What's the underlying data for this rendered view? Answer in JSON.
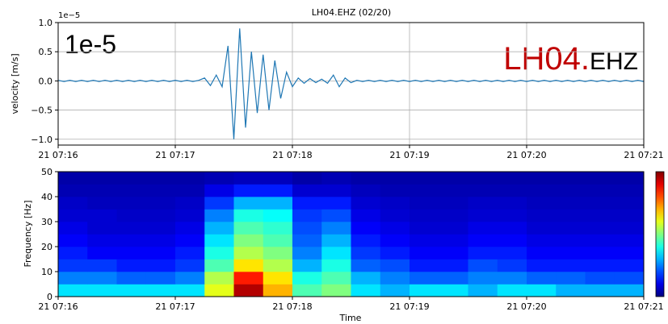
{
  "chart_data": [
    {
      "type": "line",
      "title": "LH04.EHZ (02/20)",
      "y_label": "velocity [m/s]",
      "offset_label": "1e−5",
      "annotations": {
        "scale": "1e-5",
        "station": "LH04.",
        "channel": "EHZ"
      },
      "color": "#1f77b4",
      "annotation_color": "#c00000",
      "grid": true,
      "xlim": [
        436,
        441
      ],
      "xticks": [
        {
          "value": 436,
          "label": "21 07:16"
        },
        {
          "value": 437,
          "label": "21 07:17"
        },
        {
          "value": 438,
          "label": "21 07:18"
        },
        {
          "value": 439,
          "label": "21 07:19"
        },
        {
          "value": 440,
          "label": "21 07:20"
        },
        {
          "value": 441,
          "label": "21 07:21"
        }
      ],
      "ylim": [
        -1.1,
        1.0
      ],
      "yticks": [
        {
          "value": -1,
          "label": "−1.0"
        },
        {
          "value": -0.5,
          "label": "−0.5"
        },
        {
          "value": 0,
          "label": "0.0"
        },
        {
          "value": 0.5,
          "label": "0.5"
        },
        {
          "value": 1,
          "label": "1.0"
        }
      ],
      "x": [
        436,
        436.05,
        436.1,
        436.15,
        436.2,
        436.25,
        436.3,
        436.35,
        436.4,
        436.45,
        436.5,
        436.55,
        436.6,
        436.65,
        436.7,
        436.75,
        436.8,
        436.85,
        436.9,
        436.95,
        437,
        437.05,
        437.1,
        437.15,
        437.2,
        437.25,
        437.3,
        437.35,
        437.4,
        437.45,
        437.5,
        437.55,
        437.6,
        437.65,
        437.7,
        437.75,
        437.8,
        437.85,
        437.9,
        437.95,
        438,
        438.05,
        438.1,
        438.15,
        438.2,
        438.25,
        438.3,
        438.35,
        438.4,
        438.45,
        438.5,
        438.55,
        438.6,
        438.65,
        438.7,
        438.75,
        438.8,
        438.85,
        438.9,
        438.95,
        439,
        439.05,
        439.1,
        439.15,
        439.2,
        439.25,
        439.3,
        439.35,
        439.4,
        439.45,
        439.5,
        439.55,
        439.6,
        439.65,
        439.7,
        439.75,
        439.8,
        439.85,
        439.9,
        439.95,
        440,
        440.05,
        440.1,
        440.15,
        440.2,
        440.25,
        440.3,
        440.35,
        440.4,
        440.45,
        440.5,
        440.55,
        440.6,
        440.65,
        440.7,
        440.75,
        440.8,
        440.85,
        440.9,
        440.95,
        441
      ],
      "values": [
        0.01,
        -0.01,
        0.01,
        -0.01,
        0.01,
        -0.01,
        0.01,
        -0.01,
        0.01,
        -0.01,
        0.01,
        -0.01,
        0.01,
        -0.01,
        0.01,
        -0.01,
        0.01,
        -0.01,
        0.01,
        -0.01,
        0.01,
        -0.01,
        0.01,
        -0.01,
        0.01,
        0.05,
        -0.08,
        0.1,
        -0.1,
        0.6,
        -1.0,
        0.9,
        -0.8,
        0.5,
        -0.55,
        0.45,
        -0.5,
        0.35,
        -0.3,
        0.15,
        -0.1,
        0.05,
        -0.04,
        0.04,
        -0.03,
        0.03,
        -0.04,
        0.1,
        -0.1,
        0.05,
        -0.03,
        0.01,
        -0.01,
        0.01,
        -0.01,
        0.01,
        -0.01,
        0.01,
        -0.01,
        0.01,
        -0.01,
        0.01,
        -0.01,
        0.01,
        -0.01,
        0.01,
        -0.01,
        0.01,
        -0.01,
        0.01,
        -0.01,
        0.01,
        -0.01,
        0.01,
        -0.01,
        0.01,
        -0.01,
        0.01,
        -0.01,
        0.01,
        -0.01,
        0.01,
        -0.01,
        0.01,
        -0.01,
        0.01,
        -0.01,
        0.01,
        -0.01,
        0.01,
        -0.01,
        0.01,
        -0.01,
        0.01,
        -0.01,
        0.01,
        -0.01,
        0.01,
        -0.01,
        0.01,
        -0.01
      ]
    },
    {
      "type": "spectrogram",
      "x_label": "Time",
      "y_label": "Frequency [Hz]",
      "xlim": [
        436,
        441
      ],
      "xticks": [
        {
          "value": 436,
          "label": "21 07:16"
        },
        {
          "value": 437,
          "label": "21 07:17"
        },
        {
          "value": 438,
          "label": "21 07:18"
        },
        {
          "value": 439,
          "label": "21 07:19"
        },
        {
          "value": 440,
          "label": "21 07:20"
        },
        {
          "value": 441,
          "label": "21 07:21"
        }
      ],
      "ylim": [
        0,
        50
      ],
      "yticks": [
        0,
        10,
        20,
        30,
        40,
        50
      ],
      "zlim": [
        0,
        1
      ],
      "colormap": "jet",
      "x_edges": [
        436,
        436.25,
        436.5,
        436.75,
        437,
        437.25,
        437.5,
        437.75,
        438,
        438.25,
        438.5,
        438.75,
        439,
        439.25,
        439.5,
        439.75,
        440,
        440.25,
        440.5,
        440.75,
        441
      ],
      "freq_edges": [
        0,
        5,
        10,
        15,
        20,
        25,
        30,
        35,
        40,
        45,
        50
      ],
      "z": [
        [
          0.35,
          0.35,
          0.35,
          0.35,
          0.35,
          0.6,
          0.95,
          0.7,
          0.45,
          0.5,
          0.35,
          0.3,
          0.35,
          0.35,
          0.3,
          0.35,
          0.35,
          0.3,
          0.3,
          0.3
        ],
        [
          0.25,
          0.25,
          0.22,
          0.22,
          0.25,
          0.55,
          0.85,
          0.65,
          0.4,
          0.45,
          0.3,
          0.25,
          0.22,
          0.22,
          0.25,
          0.25,
          0.22,
          0.22,
          0.2,
          0.2
        ],
        [
          0.18,
          0.18,
          0.15,
          0.15,
          0.18,
          0.45,
          0.65,
          0.55,
          0.3,
          0.4,
          0.22,
          0.2,
          0.15,
          0.15,
          0.2,
          0.18,
          0.15,
          0.15,
          0.15,
          0.15
        ],
        [
          0.15,
          0.12,
          0.12,
          0.12,
          0.15,
          0.4,
          0.55,
          0.5,
          0.25,
          0.35,
          0.18,
          0.15,
          0.12,
          0.12,
          0.15,
          0.15,
          0.12,
          0.12,
          0.12,
          0.12
        ],
        [
          0.12,
          0.1,
          0.1,
          0.1,
          0.12,
          0.35,
          0.5,
          0.45,
          0.22,
          0.3,
          0.15,
          0.12,
          0.1,
          0.1,
          0.12,
          0.12,
          0.1,
          0.1,
          0.1,
          0.1
        ],
        [
          0.1,
          0.08,
          0.08,
          0.08,
          0.1,
          0.3,
          0.45,
          0.42,
          0.2,
          0.25,
          0.12,
          0.1,
          0.08,
          0.08,
          0.1,
          0.1,
          0.08,
          0.08,
          0.08,
          0.08
        ],
        [
          0.08,
          0.08,
          0.07,
          0.07,
          0.08,
          0.25,
          0.4,
          0.38,
          0.18,
          0.2,
          0.1,
          0.08,
          0.07,
          0.07,
          0.08,
          0.08,
          0.07,
          0.07,
          0.07,
          0.07
        ],
        [
          0.07,
          0.06,
          0.06,
          0.06,
          0.07,
          0.18,
          0.3,
          0.3,
          0.15,
          0.15,
          0.08,
          0.07,
          0.06,
          0.06,
          0.07,
          0.07,
          0.06,
          0.06,
          0.06,
          0.06
        ],
        [
          0.05,
          0.05,
          0.05,
          0.05,
          0.05,
          0.1,
          0.15,
          0.15,
          0.08,
          0.08,
          0.06,
          0.05,
          0.05,
          0.05,
          0.05,
          0.05,
          0.05,
          0.05,
          0.05,
          0.05
        ],
        [
          0.04,
          0.04,
          0.04,
          0.04,
          0.04,
          0.05,
          0.06,
          0.06,
          0.04,
          0.05,
          0.04,
          0.04,
          0.04,
          0.04,
          0.04,
          0.04,
          0.04,
          0.04,
          0.04,
          0.04
        ]
      ]
    }
  ]
}
